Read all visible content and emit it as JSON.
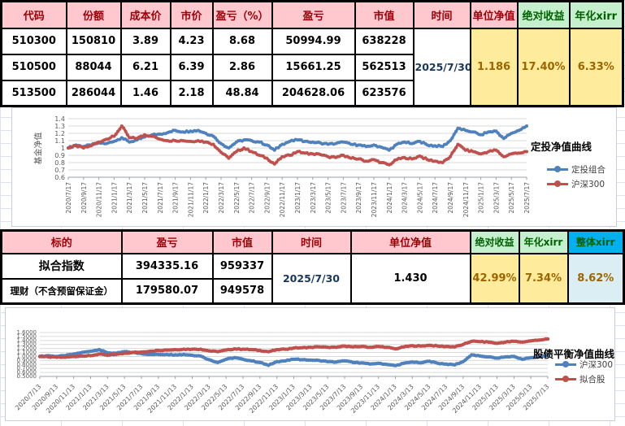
{
  "table1": {
    "headers": [
      "代码",
      "份额",
      "成本价",
      "市价",
      "盈亏（%）",
      "盈亏",
      "市值",
      "时间",
      "单位净值",
      "绝对收益",
      "年化xirr"
    ],
    "rows": [
      [
        "510300",
        "150810",
        "3.89",
        "4.23",
        "8.68",
        "50994.99",
        "638228"
      ],
      [
        "510500",
        "88044",
        "6.21",
        "6.39",
        "2.86",
        "15661.25",
        "562513"
      ],
      [
        "513500",
        "286044",
        "1.46",
        "2.18",
        "48.84",
        "204628.06",
        "623576"
      ]
    ],
    "time": "2025/7/30",
    "unit_nav": "1.186",
    "abs_return": "17.40%",
    "annual_xirr": "6.33%"
  },
  "table2": {
    "headers": [
      "标的",
      "盈亏",
      "市值",
      "时间",
      "单位净值",
      "绝对收益",
      "年化xirr",
      "整体xirr"
    ],
    "rows": [
      [
        "拟合指数",
        "394335.16",
        "959337"
      ],
      [
        "理财（不含预留保证金）",
        "179580.07",
        "949578"
      ]
    ],
    "time": "2025/7/30",
    "unit_nav": "1.430",
    "abs_return": "42.99%",
    "annual_xirr": "7.34%",
    "overall_xirr": "8.62%"
  },
  "colors": {
    "header_pink": "#FFC7CE",
    "header_pink_text": "#9C0006",
    "header_green": "#C6EFCE",
    "header_green_text": "#006100",
    "header_blue": "#00B0F0",
    "value_yellow": "#FFEB9C",
    "value_yellow_text": "#9C6500",
    "value_blue": "#DAEEF3",
    "series_blue": "#4F81BD",
    "series_red": "#C0504D"
  },
  "chart_data": [
    {
      "type": "line",
      "title": "定投净值曲线",
      "ylabel": "基金净值",
      "ylim": [
        0.6,
        1.4
      ],
      "yticks": [
        "1.4",
        "1.3",
        "1.2",
        "1.1",
        "1",
        "0.9",
        "0.8",
        "0.7",
        "0.6"
      ],
      "xticks": [
        "2020/7/17",
        "2020/9/17",
        "2020/11/17",
        "2021/1/17",
        "2021/3/17",
        "2021/5/17",
        "2021/7/17",
        "2021/9/17",
        "2021/11/17",
        "2022/1/17",
        "2022/3/17",
        "2022/5/17",
        "2022/7/17",
        "2022/9/17",
        "2022/11/17",
        "2023/1/17",
        "2023/3/17",
        "2023/5/17",
        "2023/7/17",
        "2023/9/17",
        "2023/11/17",
        "2024/1/17",
        "2024/3/17",
        "2024/5/17",
        "2024/7/17",
        "2024/9/17",
        "2024/11/17",
        "2025/1/17",
        "2025/3/17",
        "2025/5/17",
        "2025/7/17"
      ],
      "x_note": "monthly points 2020/7 .. 2025/7",
      "legend_position": "right",
      "grid": true,
      "series": [
        {
          "name": "定投组合",
          "color": "#4F81BD",
          "values": [
            1.0,
            1.04,
            1.02,
            1.04,
            1.07,
            1.06,
            1.09,
            1.14,
            1.08,
            1.11,
            1.15,
            1.18,
            1.19,
            1.21,
            1.24,
            1.22,
            1.23,
            1.24,
            1.2,
            1.16,
            1.06,
            1.0,
            1.08,
            1.11,
            1.1,
            1.08,
            1.04,
            0.97,
            1.05,
            1.09,
            1.11,
            1.09,
            1.08,
            1.07,
            1.05,
            1.06,
            1.08,
            1.05,
            1.04,
            1.02,
            1.04,
            1.01,
            0.97,
            1.05,
            1.08,
            1.06,
            1.09,
            1.04,
            1.03,
            1.02,
            1.1,
            1.27,
            1.24,
            1.22,
            1.18,
            1.22,
            1.23,
            1.13,
            1.2,
            1.24,
            1.3
          ]
        },
        {
          "name": "沪深300",
          "color": "#C0504D",
          "values": [
            1.0,
            1.03,
            1.0,
            1.03,
            1.08,
            1.12,
            1.16,
            1.3,
            1.14,
            1.13,
            1.18,
            1.16,
            1.12,
            1.1,
            1.1,
            1.1,
            1.09,
            1.1,
            1.08,
            1.05,
            0.94,
            0.86,
            0.95,
            1.0,
            0.95,
            0.9,
            0.86,
            0.78,
            0.88,
            0.9,
            0.95,
            0.93,
            0.92,
            0.91,
            0.88,
            0.87,
            0.9,
            0.86,
            0.85,
            0.82,
            0.84,
            0.8,
            0.77,
            0.84,
            0.87,
            0.85,
            0.89,
            0.84,
            0.82,
            0.8,
            0.88,
            1.05,
            0.97,
            0.95,
            0.92,
            0.95,
            0.97,
            0.88,
            0.92,
            0.93,
            0.95
          ]
        }
      ]
    },
    {
      "type": "line",
      "title": "股债平衡净值曲线",
      "ylabel": "",
      "ylim": [
        0.5,
        1.6
      ],
      "yticks": [
        "1.6000",
        "1.5000",
        "1.4000",
        "1.3000",
        "1.2000",
        "1.1000",
        "1.0000",
        "0.9000",
        "0.8000",
        "0.7000",
        "0.6000",
        "0.5000"
      ],
      "xticks": [
        "2020/7/13",
        "2020/9/13",
        "2020/11/13",
        "2021/1/13",
        "2021/3/13",
        "2021/5/13",
        "2021/7/13",
        "2021/9/13",
        "2021/11/13",
        "2022/1/13",
        "2022/3/13",
        "2022/5/13",
        "2022/7/13",
        "2022/9/13",
        "2022/11/13",
        "2023/1/13",
        "2023/3/13",
        "2023/5/13",
        "2023/7/13",
        "2023/9/13",
        "2023/11/13",
        "2024/1/13",
        "2024/3/13",
        "2024/5/13",
        "2024/7/13",
        "2024/9/13",
        "2024/11/13",
        "2025/1/13",
        "2025/3/13",
        "2025/5/13",
        "2025/7/13"
      ],
      "x_note": "monthly points 2020/7 .. 2025/7",
      "legend_position": "right",
      "grid": true,
      "series": [
        {
          "name": "沪深300",
          "color": "#4F81BD",
          "values": [
            1.0,
            1.02,
            1.0,
            1.02,
            1.06,
            1.1,
            1.13,
            1.17,
            1.09,
            1.08,
            1.12,
            1.1,
            1.07,
            1.05,
            1.05,
            1.05,
            1.04,
            1.05,
            1.03,
            1.01,
            0.92,
            0.85,
            0.93,
            0.97,
            0.93,
            0.89,
            0.85,
            0.78,
            0.87,
            0.89,
            0.93,
            0.92,
            0.91,
            0.9,
            0.87,
            0.86,
            0.89,
            0.85,
            0.84,
            0.81,
            0.83,
            0.8,
            0.77,
            0.83,
            0.86,
            0.84,
            0.88,
            0.83,
            0.81,
            0.79,
            0.87,
            1.04,
            1.01,
            0.99,
            0.96,
            0.99,
            1.0,
            0.93,
            0.97,
            0.99,
            1.03
          ]
        },
        {
          "name": "拟合股",
          "color": "#C0504D",
          "values": [
            1.0,
            0.99,
            0.98,
            0.98,
            1.0,
            1.01,
            1.02,
            1.06,
            1.03,
            1.05,
            1.08,
            1.1,
            1.11,
            1.13,
            1.15,
            1.16,
            1.17,
            1.18,
            1.18,
            1.18,
            1.14,
            1.12,
            1.16,
            1.19,
            1.18,
            1.17,
            1.15,
            1.12,
            1.17,
            1.18,
            1.21,
            1.22,
            1.23,
            1.24,
            1.23,
            1.23,
            1.26,
            1.24,
            1.25,
            1.23,
            1.25,
            1.23,
            1.19,
            1.24,
            1.27,
            1.26,
            1.28,
            1.26,
            1.25,
            1.24,
            1.3,
            1.38,
            1.37,
            1.36,
            1.33,
            1.36,
            1.38,
            1.36,
            1.39,
            1.41,
            1.44
          ]
        }
      ]
    }
  ]
}
